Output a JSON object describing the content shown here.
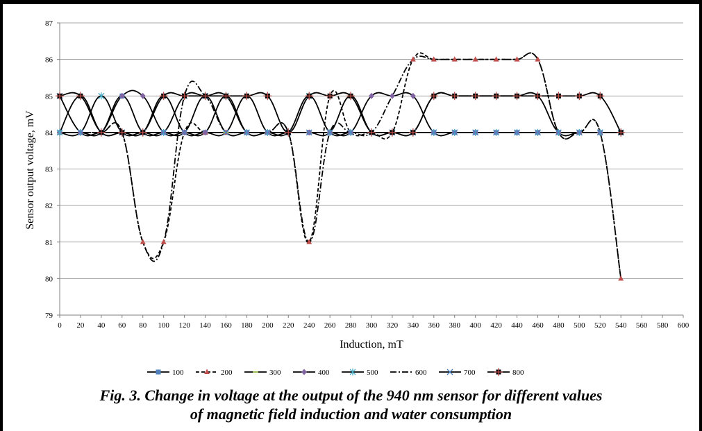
{
  "caption": {
    "line1": "Fig. 3. Change in voltage at the output of the 940 nm sensor for different values",
    "line2": "of magnetic field induction and water consumption"
  },
  "chart_data": {
    "type": "line",
    "title": "",
    "xlabel": "Induction, mT",
    "ylabel": "Sensor output voltage, mV",
    "xlim": [
      0,
      600
    ],
    "ylim": [
      79,
      87
    ],
    "xticks": [
      0,
      20,
      40,
      60,
      80,
      100,
      120,
      140,
      160,
      180,
      200,
      220,
      240,
      260,
      280,
      300,
      320,
      340,
      360,
      380,
      400,
      420,
      440,
      460,
      480,
      500,
      520,
      540,
      560,
      580,
      600
    ],
    "yticks": [
      79,
      80,
      81,
      82,
      83,
      84,
      85,
      86,
      87
    ],
    "grid": "horizontal",
    "legend_position": "bottom",
    "series": [
      {
        "name": "100",
        "color": "#4f81bd",
        "marker": "square",
        "dash": "solid",
        "x": [
          0,
          20,
          40,
          60,
          80,
          100,
          120,
          140,
          160,
          180,
          200,
          220,
          240,
          260,
          280,
          300,
          320,
          340,
          360,
          380,
          400,
          420,
          440,
          460,
          480,
          500,
          520,
          540
        ],
        "y": [
          84,
          84,
          84,
          85,
          84,
          84,
          84,
          84,
          84,
          84,
          84,
          84,
          84,
          84,
          84,
          84,
          84,
          84,
          84,
          84,
          84,
          84,
          84,
          84,
          84,
          84,
          84,
          84
        ]
      },
      {
        "name": "200",
        "color": "#c0504d",
        "marker": "triangle",
        "dash": "dashed",
        "x": [
          0,
          20,
          40,
          60,
          80,
          100,
          120,
          140,
          160,
          180,
          200,
          220,
          240,
          260,
          280,
          300,
          320,
          340,
          360,
          380,
          400,
          420,
          440,
          460,
          480,
          500,
          520,
          540
        ],
        "y": [
          84,
          84,
          84,
          84,
          81,
          81,
          84,
          84,
          84,
          84,
          84,
          84,
          81,
          85,
          84,
          84,
          84,
          86,
          86,
          86,
          86,
          86,
          86,
          86,
          84,
          84,
          84,
          80
        ]
      },
      {
        "name": "300",
        "color": "#9bbb59",
        "marker": "dash",
        "dash": "solid",
        "x": [
          0,
          20,
          40,
          60,
          80,
          100,
          120,
          140,
          160,
          180,
          200,
          220,
          240,
          260,
          280,
          300,
          320,
          340,
          360,
          380,
          400,
          420,
          440,
          460,
          480,
          500,
          520,
          540
        ],
        "y": [
          84,
          85,
          84,
          84,
          84,
          85,
          84,
          84,
          84,
          85,
          84,
          84,
          84,
          84,
          85,
          84,
          84,
          84,
          85,
          85,
          85,
          85,
          85,
          85,
          84,
          84,
          84,
          84
        ]
      },
      {
        "name": "400",
        "color": "#8064a2",
        "marker": "diamond",
        "dash": "solid",
        "x": [
          0,
          20,
          40,
          60,
          80,
          100,
          120,
          140,
          160,
          180,
          200,
          220,
          240,
          260,
          280,
          300,
          320,
          340,
          360,
          380,
          400,
          420,
          440,
          460,
          480,
          500,
          520,
          540
        ],
        "y": [
          84,
          84,
          84,
          85,
          85,
          84,
          84,
          84,
          85,
          84,
          84,
          84,
          84,
          84,
          84,
          85,
          85,
          85,
          84,
          84,
          84,
          84,
          84,
          84,
          84,
          84,
          84,
          84
        ]
      },
      {
        "name": "500",
        "color": "#4bacc6",
        "marker": "star",
        "dash": "solid",
        "x": [
          0,
          20,
          40,
          60,
          80,
          100,
          120,
          140,
          160,
          180,
          200,
          220,
          240,
          260,
          280,
          300,
          320,
          340,
          360,
          380,
          400,
          420,
          440,
          460,
          480,
          500,
          520,
          540
        ],
        "y": [
          84,
          84,
          85,
          84,
          84,
          84,
          85,
          85,
          85,
          84,
          84,
          84,
          85,
          84,
          84,
          84,
          84,
          84,
          84,
          84,
          84,
          84,
          84,
          84,
          84,
          84,
          84,
          84
        ]
      },
      {
        "name": "600",
        "color": "#000000",
        "marker": "none",
        "dash": "dashdot",
        "x": [
          0,
          20,
          40,
          60,
          80,
          100,
          120,
          140,
          160,
          180,
          200,
          220,
          240,
          260,
          280,
          300,
          320,
          340,
          360,
          380,
          400,
          420,
          440,
          460,
          480,
          500,
          520,
          540
        ],
        "y": [
          84,
          84,
          84,
          84,
          81,
          81,
          85,
          85,
          84,
          84,
          84,
          84,
          81,
          84,
          84,
          84,
          85,
          86,
          86,
          86,
          86,
          86,
          86,
          86,
          84,
          84,
          84,
          80
        ]
      },
      {
        "name": "700",
        "color": "#4f81bd",
        "marker": "cross",
        "dash": "solid",
        "x": [
          0,
          20,
          40,
          60,
          80,
          100,
          120,
          140,
          160,
          180,
          200,
          220,
          240,
          260,
          280,
          300,
          320,
          340,
          360,
          380,
          400,
          420,
          440,
          460,
          480,
          500,
          520,
          540
        ],
        "y": [
          85,
          84,
          84,
          84,
          84,
          84,
          84,
          85,
          84,
          84,
          84,
          84,
          84,
          84,
          84,
          84,
          84,
          84,
          84,
          84,
          84,
          84,
          84,
          84,
          84,
          84,
          84,
          84
        ]
      },
      {
        "name": "800",
        "color": "#000000",
        "marker": "square-cross",
        "dash": "solid",
        "x": [
          0,
          20,
          40,
          60,
          80,
          100,
          120,
          140,
          160,
          180,
          200,
          220,
          240,
          260,
          280,
          300,
          320,
          340,
          360,
          380,
          400,
          420,
          440,
          460,
          480,
          500,
          520,
          540
        ],
        "y": [
          85,
          85,
          84,
          84,
          84,
          85,
          85,
          85,
          85,
          85,
          85,
          84,
          85,
          85,
          85,
          84,
          84,
          84,
          85,
          85,
          85,
          85,
          85,
          85,
          85,
          85,
          85,
          84
        ]
      }
    ]
  }
}
